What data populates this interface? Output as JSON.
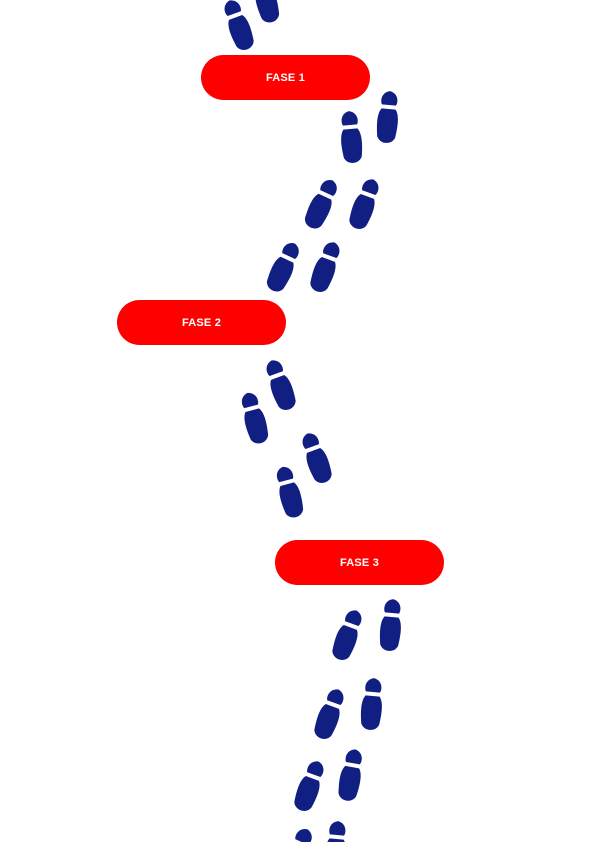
{
  "colors": {
    "phase_fill": "#ff0000",
    "phase_text": "#ffffff",
    "footprint": "#121f82",
    "background": "#ffffff"
  },
  "phases": [
    {
      "label": "FASE 1"
    },
    {
      "label": "FASE 2"
    },
    {
      "label": "FASE 3"
    }
  ],
  "footprint_icon": "shoe-print-icon"
}
